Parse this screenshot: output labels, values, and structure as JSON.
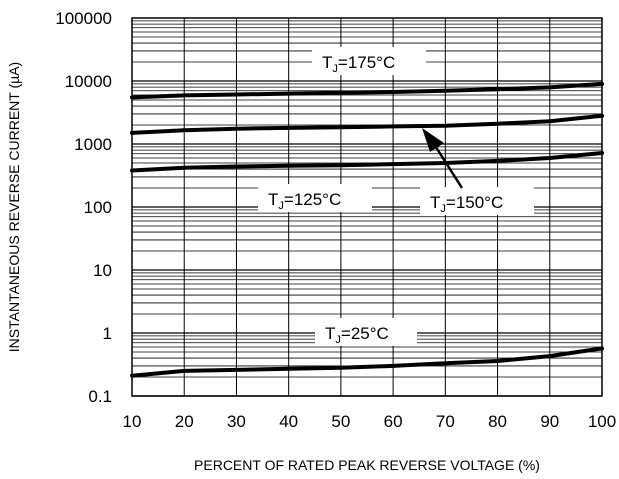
{
  "chart_data": {
    "type": "line",
    "title": "",
    "xlabel": "PERCENT OF RATED PEAK REVERSE VOLTAGE (%)",
    "ylabel": "INSTANTANEOUS REVERSE CURRENT (µA)",
    "xlim": [
      10,
      100
    ],
    "ylim": [
      0.1,
      100000
    ],
    "yscale": "log",
    "grid": true,
    "x_ticks": [
      "10",
      "20",
      "30",
      "40",
      "50",
      "60",
      "70",
      "80",
      "90",
      "100"
    ],
    "y_ticks": [
      "0.1",
      "1",
      "10",
      "100",
      "1000",
      "10000",
      "100000"
    ],
    "series": [
      {
        "name": "TJ=175°C",
        "x": [
          10,
          20,
          30,
          40,
          50,
          60,
          70,
          80,
          90,
          100
        ],
        "y": [
          5500,
          5900,
          6100,
          6300,
          6500,
          6700,
          7000,
          7400,
          7900,
          9000
        ]
      },
      {
        "name": "TJ=150°C",
        "x": [
          10,
          20,
          30,
          40,
          50,
          60,
          70,
          80,
          90,
          100
        ],
        "y": [
          1500,
          1650,
          1750,
          1800,
          1850,
          1900,
          1950,
          2100,
          2300,
          2800
        ]
      },
      {
        "name": "TJ=125°C",
        "x": [
          10,
          20,
          30,
          40,
          50,
          60,
          70,
          80,
          90,
          100
        ],
        "y": [
          380,
          420,
          440,
          450,
          460,
          480,
          500,
          540,
          600,
          720
        ]
      },
      {
        "name": "TJ=25°C",
        "x": [
          10,
          20,
          30,
          40,
          50,
          60,
          70,
          80,
          90,
          100
        ],
        "y": [
          0.21,
          0.25,
          0.26,
          0.27,
          0.28,
          0.3,
          0.33,
          0.36,
          0.43,
          0.57
        ]
      }
    ],
    "annotations": [
      {
        "main": "T",
        "sub": "J",
        "rest": "=175°C"
      },
      {
        "main": "T",
        "sub": "J",
        "rest": "=125°C"
      },
      {
        "main": "T",
        "sub": "J",
        "rest": "=150°C"
      },
      {
        "main": "T",
        "sub": "J",
        "rest": "=25°C"
      }
    ],
    "colors": {
      "line": "#000000",
      "grid": "#000000",
      "background": "#ffffff"
    }
  }
}
